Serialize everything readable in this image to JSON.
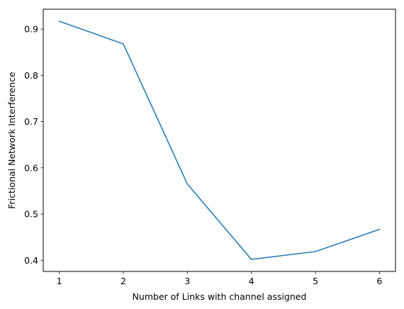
{
  "chart_data": {
    "type": "line",
    "title": "",
    "xlabel": "Number of Links with channel assigned",
    "ylabel": "Frictional Network Interference",
    "x": [
      1,
      2,
      3,
      4,
      5,
      6
    ],
    "series": [
      {
        "values": [
          0.917,
          0.868,
          0.565,
          0.402,
          0.419,
          0.467
        ],
        "color": "#1f77b4"
      }
    ],
    "xlim": [
      0.75,
      6.25
    ],
    "ylim": [
      0.376,
      0.943
    ],
    "xticks": [
      1,
      2,
      3,
      4,
      5,
      6
    ],
    "xtick_labels": [
      "1",
      "2",
      "3",
      "4",
      "5",
      "6"
    ],
    "yticks": [
      0.4,
      0.5,
      0.6,
      0.7,
      0.8,
      0.9
    ],
    "ytick_labels": [
      "0.4",
      "0.5",
      "0.6",
      "0.7",
      "0.8",
      "0.9"
    ],
    "grid": false,
    "legend": "none"
  }
}
